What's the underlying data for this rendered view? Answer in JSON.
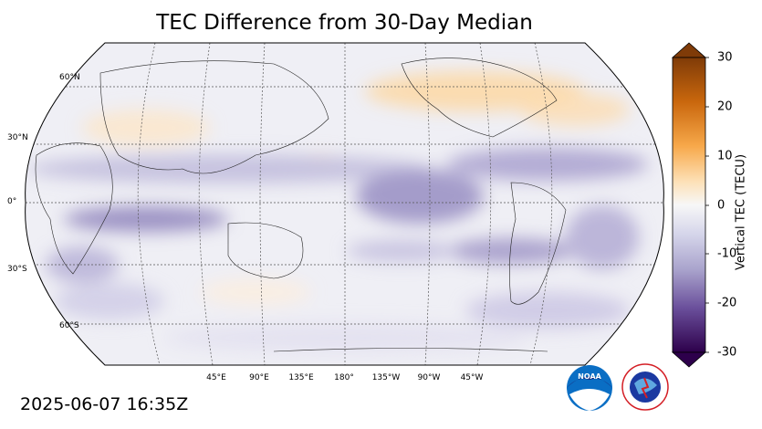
{
  "title": "TEC Difference from 30-Day Median",
  "timestamp": "2025-06-07 16:35Z",
  "lat_labels": [
    "60°N",
    "30°N",
    "0°",
    "30°S",
    "60°S"
  ],
  "lon_labels": [
    "45°E",
    "90°E",
    "135°E",
    "180°",
    "135°W",
    "90°W",
    "45°W"
  ],
  "colorbar": {
    "label": "Vertical TEC (TECU)",
    "ticks": [
      "30",
      "20",
      "10",
      "0",
      "-10",
      "-20",
      "-30"
    ],
    "min": -30,
    "max": 30,
    "colors": {
      "high": "#7f3b08",
      "mid": "#f7f7f7",
      "low": "#2d004b"
    }
  },
  "logos": {
    "noaa": "NOAA",
    "nws": "NATIONAL WEATHER SERVICE"
  }
}
